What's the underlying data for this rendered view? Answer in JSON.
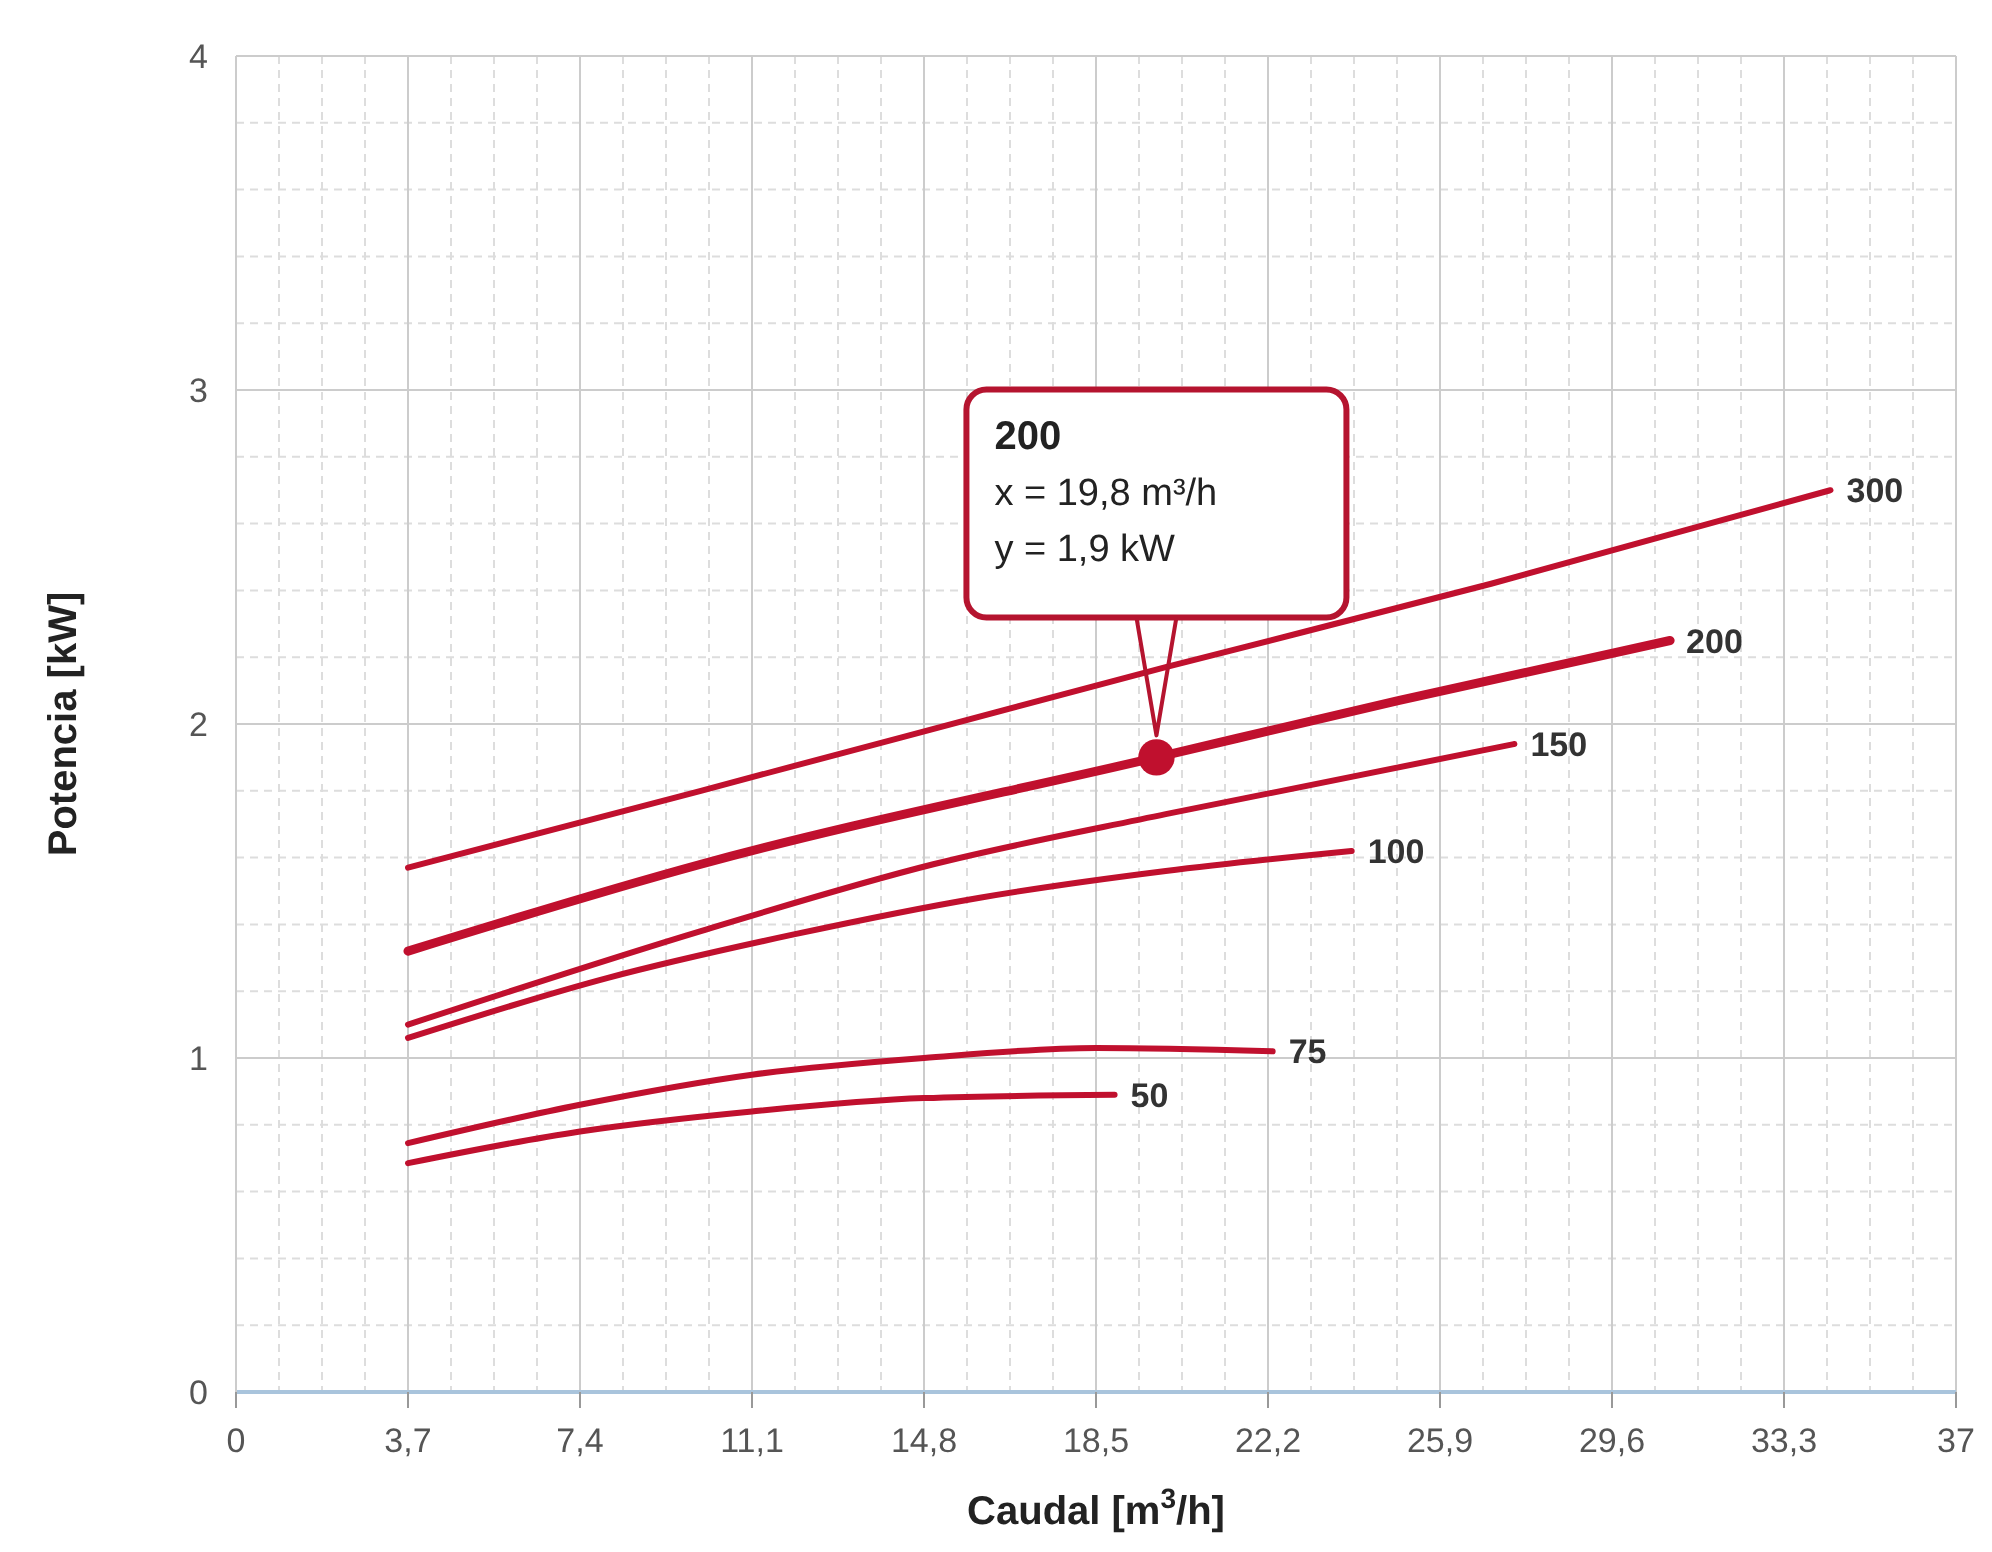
{
  "chart_data": {
    "type": "line",
    "xlabel": "Caudal [m$^{3}$/h]",
    "ylabel": "Potencia [kW]",
    "xlim": [
      0,
      37
    ],
    "ylim": [
      0,
      4
    ],
    "xticks": [
      0,
      {
        "value": 3.7,
        "label": "3,7"
      },
      {
        "value": 7.4,
        "label": "7,4"
      },
      {
        "value": 11.1,
        "label": "11,1"
      },
      {
        "value": 14.8,
        "label": "14,8"
      },
      {
        "value": 18.5,
        "label": "18,5"
      },
      {
        "value": 22.2,
        "label": "22,2"
      },
      {
        "value": 25.9,
        "label": "25,9"
      },
      {
        "value": 29.6,
        "label": "29,6"
      },
      {
        "value": 33.3,
        "label": "33,3"
      },
      37
    ],
    "yticks": [
      0,
      1,
      2,
      3,
      4
    ],
    "grid": true,
    "marker": "none",
    "line_style": "solid",
    "series": [
      {
        "name": "300",
        "color": "#c0102e",
        "x": [
          3.7,
          10,
          20,
          27,
          34.3
        ],
        "values": [
          1.57,
          1.8,
          2.17,
          2.42,
          2.7
        ]
      },
      {
        "name": "200",
        "color": "#c0102e",
        "x": [
          3.7,
          10,
          19.8,
          25,
          30.85
        ],
        "values": [
          1.32,
          1.58,
          1.9,
          2.07,
          2.25
        ]
      },
      {
        "name": "150",
        "color": "#c0102e",
        "x": [
          3.7,
          10,
          15,
          20,
          27.5
        ],
        "values": [
          1.1,
          1.38,
          1.58,
          1.73,
          1.94
        ]
      },
      {
        "name": "100",
        "color": "#c0102e",
        "x": [
          3.7,
          8,
          12,
          16,
          20,
          24
        ],
        "values": [
          1.06,
          1.24,
          1.37,
          1.48,
          1.56,
          1.62
        ]
      },
      {
        "name": "75",
        "color": "#c0102e",
        "x": [
          3.7,
          7.4,
          11.1,
          14.8,
          18.5,
          22.3
        ],
        "values": [
          0.745,
          0.86,
          0.95,
          1.0,
          1.03,
          1.02
        ]
      },
      {
        "name": "50",
        "color": "#c0102e",
        "x": [
          3.7,
          7.4,
          11.1,
          14.8,
          18.9
        ],
        "values": [
          0.685,
          0.78,
          0.84,
          0.88,
          0.89
        ]
      },
      {
        "type": "scatter",
        "color": "#c0102e",
        "marker": "circle",
        "x": [
          19.8
        ],
        "values": [
          1.9
        ]
      }
    ],
    "annotations": [
      "200\nx = 19,8 m³/h\ny = 1,9 kW"
    ]
  }
}
